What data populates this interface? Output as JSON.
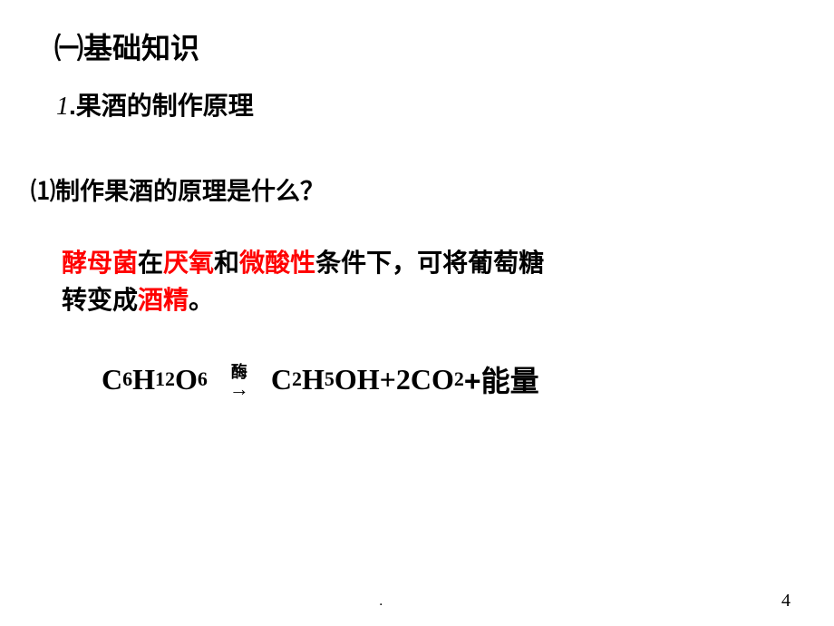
{
  "colors": {
    "black": "#000000",
    "red": "#ff0000",
    "bg": "#ffffff"
  },
  "typography": {
    "heading1_size": 32,
    "heading2_size": 28,
    "body_size": 27,
    "answer_size": 28,
    "equation_size": 32,
    "sub_size": 22,
    "arrow_label_size": 18,
    "page_num_size": 20
  },
  "heading1": {
    "prefix": "㈠",
    "text": "基础知识"
  },
  "heading2": {
    "num": "1",
    "dot": ".",
    "text": "果酒的制作原理"
  },
  "question": {
    "prefix": "⑴",
    "text": "制作果酒的原理是什么？"
  },
  "answer": {
    "seg1_red": "酵母菌",
    "seg2": "在",
    "seg3_red": "厌氧",
    "seg4": "和",
    "seg5_red": "微酸性",
    "seg6": "条件下，可将葡萄糖",
    "line2a": "转变成",
    "line2b_red": "酒精",
    "line2c": "。"
  },
  "equation": {
    "lhs_base": "C",
    "lhs_sub1": "6",
    "lhs_h": "H",
    "lhs_sub2": "12",
    "lhs_o": "O",
    "lhs_sub3": "6",
    "arrow_label": "酶",
    "arrow": "→",
    "rhs_c": "C",
    "rhs_sub1": "2",
    "rhs_h": "H",
    "rhs_sub2": "5",
    "rhs_oh": "OH+2CO",
    "rhs_sub3": "2",
    "rhs_tail": "+能量"
  },
  "footer_dot": ".",
  "page_number": "4"
}
